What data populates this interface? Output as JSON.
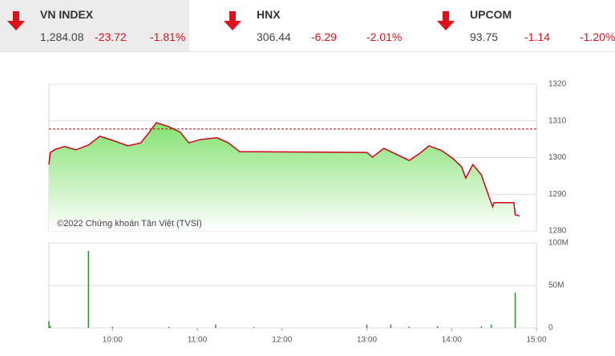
{
  "indices": [
    {
      "name": "VN INDEX",
      "value": "1,284.08",
      "change": "-23.72",
      "pct": "-1.81%"
    },
    {
      "name": "HNX",
      "value": "306.44",
      "change": "-6.29",
      "pct": "-2.01%"
    },
    {
      "name": "UPCOM",
      "value": "93.75",
      "change": "-1.14",
      "pct": "-1.20%"
    }
  ],
  "chart_data": [
    {
      "type": "line",
      "annotation": "©2022 Chứng khoán Tân Việt (TVSI)",
      "x": [
        555,
        556,
        560,
        566,
        574,
        583,
        591,
        600,
        611,
        620,
        626,
        631,
        640,
        648,
        654,
        662,
        674,
        682,
        690,
        780,
        784,
        792,
        798,
        810,
        817,
        824,
        833,
        841,
        847,
        850,
        855,
        861,
        867,
        869,
        870,
        884,
        885,
        888
      ],
      "values": [
        1298.1,
        1301.4,
        1302.3,
        1303.0,
        1302.1,
        1303.4,
        1305.8,
        1304.7,
        1303.2,
        1304.0,
        1306.9,
        1309.5,
        1308.4,
        1306.9,
        1304.0,
        1304.9,
        1305.4,
        1304.0,
        1301.6,
        1301.4,
        1300.1,
        1302.5,
        1301.4,
        1299.2,
        1301.0,
        1303.2,
        1301.9,
        1299.7,
        1297.5,
        1294.4,
        1298.1,
        1295.3,
        1288.7,
        1286.6,
        1287.7,
        1287.7,
        1284.4,
        1284.08
      ],
      "color": "#d0021b",
      "reference_line": 1307.8,
      "reference_color": "#c00000",
      "xlim": [
        555,
        900
      ],
      "ylim": [
        1280,
        1320
      ],
      "yticks": [
        1280,
        1290,
        1300,
        1310,
        1320
      ],
      "grid": true
    },
    {
      "type": "bar",
      "x": [
        555,
        556,
        583,
        600,
        640,
        673,
        700,
        780,
        797,
        810,
        830,
        861,
        868,
        885
      ],
      "values": [
        8000000,
        2500000,
        90600000,
        1500000,
        1200000,
        4000000,
        1000000,
        4000000,
        4000000,
        1500000,
        2000000,
        1800000,
        4000000,
        41500000
      ],
      "color": "#2e8b2e",
      "xlim": [
        555,
        900
      ],
      "ylim": [
        0,
        100000000
      ],
      "yticks": [
        0,
        {
          "value": 50000000,
          "label": "50M"
        },
        {
          "value": 100000000,
          "label": "100M"
        }
      ],
      "xticks": [
        {
          "value": 600,
          "label": "10:00"
        },
        {
          "value": 660,
          "label": "11:00"
        },
        {
          "value": 720,
          "label": "12:00"
        },
        {
          "value": 780,
          "label": "13:00"
        },
        {
          "value": 840,
          "label": "14:00"
        },
        {
          "value": 900,
          "label": "15:00"
        }
      ],
      "grid": true
    }
  ]
}
